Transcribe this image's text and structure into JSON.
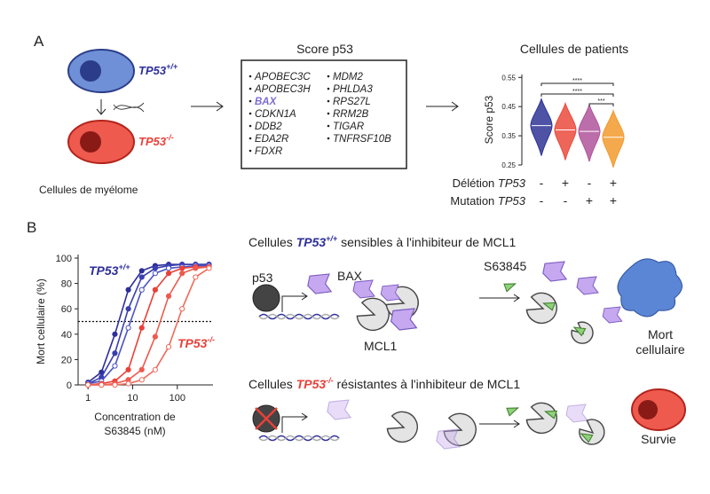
{
  "panel_a": {
    "label": "A",
    "wt_gene": "TP53",
    "wt_genotype": "+/+",
    "ko_gene": "TP53",
    "ko_genotype": "-/-",
    "cells_caption": "Cellules de myélome",
    "score_title": "Score p53",
    "genes_col1": [
      "APOBEC3C",
      "APOBEC3H",
      "BAX",
      "CDKN1A",
      "DDB2",
      "EDA2R",
      "FDXR"
    ],
    "genes_col2": [
      "MDM2",
      "PHLDA3",
      "RPS27L",
      "RRM2B",
      "TIGAR",
      "TNFRSF10B"
    ],
    "patients_title": "Cellules de patients",
    "violin": {
      "y_label": "Score p53",
      "ylim": [
        0.25,
        0.56
      ],
      "yticks": [
        0.25,
        0.35,
        0.45,
        0.55
      ],
      "medians": [
        0.385,
        0.37,
        0.365,
        0.345
      ],
      "colors": [
        "#2f3597",
        "#ea4b3c",
        "#b0559c",
        "#f29a2e"
      ],
      "significance": [
        "****",
        "****",
        "***"
      ],
      "deletion_label": "Délétion",
      "deletion_gene": "TP53",
      "mutation_label": "Mutation",
      "mutation_gene": "TP53",
      "deletion_signs": [
        "-",
        "+",
        "-",
        "+"
      ],
      "mutation_signs": [
        "-",
        "-",
        "+",
        "+"
      ]
    }
  },
  "panel_b": {
    "label": "B",
    "chart": {
      "y_label": "Mort cellulaire (%)",
      "x_label_line1": "Concentration de",
      "x_label_line2": "S63845 (nM)",
      "xlim": [
        0.6,
        630
      ],
      "ylim": [
        0,
        100
      ],
      "xticks": [
        1,
        10,
        100
      ],
      "yticks": [
        0,
        20,
        40,
        60,
        80,
        100
      ],
      "log_x": true,
      "threshold": 50,
      "wt_gene": "TP53",
      "wt_genotype": "+/+",
      "ko_gene": "TP53",
      "ko_genotype": "-/-",
      "x": [
        1,
        2,
        4,
        8,
        16,
        32,
        64,
        128,
        256,
        512
      ],
      "series": [
        {
          "color": "#2e2f9a",
          "values": [
            2,
            10,
            40,
            75,
            90,
            94,
            95,
            95,
            95,
            95
          ]
        },
        {
          "color": "#3a3fb0",
          "values": [
            1,
            6,
            25,
            60,
            85,
            92,
            94,
            95,
            95,
            95
          ]
        },
        {
          "color": "#4a52c4",
          "values": [
            1,
            3,
            15,
            45,
            75,
            88,
            92,
            93,
            94,
            94
          ]
        },
        {
          "color": "#e8413a",
          "values": [
            0,
            1,
            3,
            12,
            45,
            75,
            88,
            92,
            93,
            93
          ]
        },
        {
          "color": "#ee5a4e",
          "values": [
            0,
            0,
            1,
            4,
            12,
            38,
            70,
            88,
            92,
            93
          ]
        },
        {
          "color": "#f06a5c",
          "values": [
            0,
            0,
            0,
            1,
            4,
            12,
            30,
            60,
            85,
            92
          ]
        }
      ]
    },
    "top": {
      "title_pre": "Cellules ",
      "title_gene": "TP53",
      "title_genotype": "+/+",
      "title_post": " sensibles à l'inhibiteur de MCL1",
      "p53": "p53",
      "bax": "BAX",
      "drug": "S63845",
      "mcl1": "MCL1",
      "outcome_line1": "Mort",
      "outcome_line2": "cellulaire"
    },
    "bottom": {
      "title_pre": "Cellules ",
      "title_gene": "TP53",
      "title_genotype": "-/-",
      "title_post": " résistantes à l'inhibiteur de MCL1",
      "outcome": "Survie"
    }
  }
}
